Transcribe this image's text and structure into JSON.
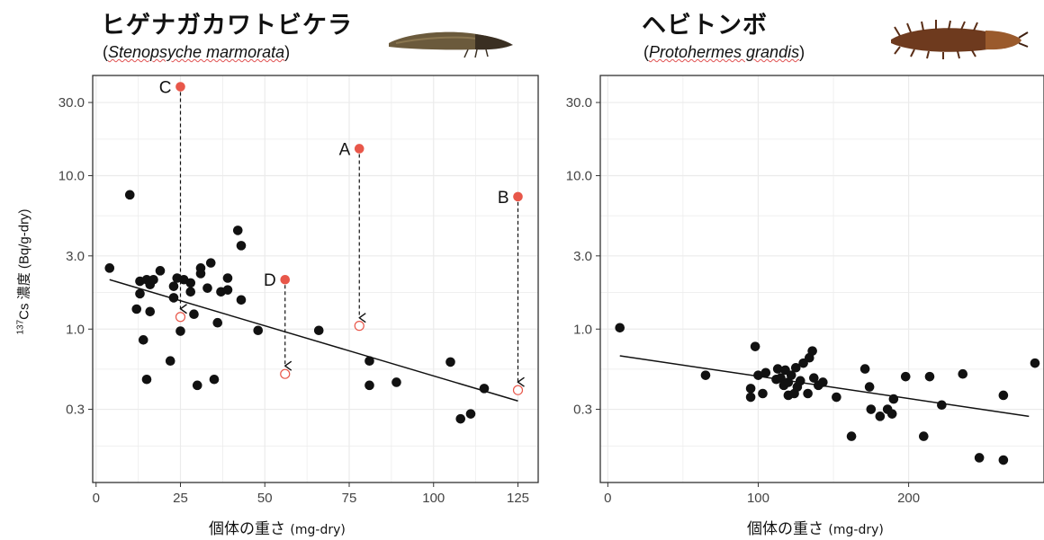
{
  "figure": {
    "y_axis_label": {
      "prefix": "137",
      "main": "Cs 濃度",
      "unit": "(Bq/g-dry)"
    },
    "colors": {
      "point": "#111111",
      "highlight": "#e8574a",
      "line": "#111111",
      "grid": "#ebebeb",
      "frame": "#333333"
    }
  },
  "panels": [
    {
      "title": "ヒゲナガカワトビケラ",
      "subtitle_open": "(",
      "subtitle_scientific": "Stenopsyche marmorata",
      "subtitle_close": ")",
      "image_icon": "caddisfly-larva-photo",
      "xlabel_main": "個体の重さ",
      "xlabel_unit": "(mg-dry)"
    },
    {
      "title": "ヘビトンボ",
      "subtitle_open": "(",
      "subtitle_scientific": "Protohermes grandis",
      "subtitle_close": ")",
      "image_icon": "dobsonfly-larva-photo",
      "xlabel_main": "個体の重さ",
      "xlabel_unit": "(mg-dry)"
    }
  ],
  "chart_data": [
    {
      "type": "scatter",
      "title": "ヒゲナガカワトビケラ (Stenopsyche marmorata)",
      "xlabel": "個体の重さ (mg-dry)",
      "ylabel": "137Cs 濃度 (Bq/g-dry)",
      "y_scale": "log",
      "xlim": [
        -1,
        131
      ],
      "ylim": [
        0.1,
        45
      ],
      "x_ticks": [
        0,
        25,
        50,
        75,
        100,
        125
      ],
      "x_tick_labels": [
        "0",
        "25",
        "50",
        "75",
        "100",
        "125"
      ],
      "y_ticks": [
        0.3,
        1.0,
        3.0,
        10.0,
        30.0
      ],
      "y_tick_labels": [
        "0.3",
        "1.0",
        "3.0",
        "10.0",
        "30.0"
      ],
      "grid": true,
      "points": [
        {
          "x": 4,
          "y": 2.5
        },
        {
          "x": 10,
          "y": 7.5
        },
        {
          "x": 12,
          "y": 1.35
        },
        {
          "x": 13,
          "y": 1.7
        },
        {
          "x": 13,
          "y": 2.05
        },
        {
          "x": 14,
          "y": 0.85
        },
        {
          "x": 15,
          "y": 2.1
        },
        {
          "x": 15,
          "y": 0.47
        },
        {
          "x": 16,
          "y": 1.95
        },
        {
          "x": 16,
          "y": 1.3
        },
        {
          "x": 17,
          "y": 2.1
        },
        {
          "x": 19,
          "y": 2.4
        },
        {
          "x": 22,
          "y": 0.62
        },
        {
          "x": 23,
          "y": 1.6
        },
        {
          "x": 23,
          "y": 1.9
        },
        {
          "x": 24,
          "y": 2.15
        },
        {
          "x": 25,
          "y": 0.97
        },
        {
          "x": 26,
          "y": 2.1
        },
        {
          "x": 28,
          "y": 2.0
        },
        {
          "x": 28,
          "y": 1.75
        },
        {
          "x": 29,
          "y": 1.25
        },
        {
          "x": 30,
          "y": 0.43
        },
        {
          "x": 31,
          "y": 2.5
        },
        {
          "x": 31,
          "y": 2.3
        },
        {
          "x": 33,
          "y": 1.85
        },
        {
          "x": 34,
          "y": 2.7
        },
        {
          "x": 35,
          "y": 0.47
        },
        {
          "x": 36,
          "y": 1.1
        },
        {
          "x": 37,
          "y": 1.75
        },
        {
          "x": 39,
          "y": 1.8
        },
        {
          "x": 39,
          "y": 2.15
        },
        {
          "x": 42,
          "y": 4.4
        },
        {
          "x": 43,
          "y": 3.5
        },
        {
          "x": 43,
          "y": 1.55
        },
        {
          "x": 48,
          "y": 0.98
        },
        {
          "x": 66,
          "y": 0.98
        },
        {
          "x": 81,
          "y": 0.62
        },
        {
          "x": 81,
          "y": 0.43
        },
        {
          "x": 89,
          "y": 0.45
        },
        {
          "x": 105,
          "y": 0.61
        },
        {
          "x": 108,
          "y": 0.26
        },
        {
          "x": 111,
          "y": 0.28
        },
        {
          "x": 115,
          "y": 0.41
        }
      ],
      "highlighted": [
        {
          "label": "C",
          "x": 25,
          "y": 38.0,
          "y_after": 1.2
        },
        {
          "label": "A",
          "x": 78,
          "y": 15.0,
          "y_after": 1.05
        },
        {
          "label": "B",
          "x": 125,
          "y": 7.3,
          "y_after": 0.4
        },
        {
          "label": "D",
          "x": 56,
          "y": 2.1,
          "y_after": 0.51
        }
      ],
      "trend_line": {
        "x": [
          4,
          125
        ],
        "y": [
          2.1,
          0.34
        ]
      }
    },
    {
      "type": "scatter",
      "title": "ヘビトンボ (Protohermes grandis)",
      "xlabel": "個体の重さ (mg-dry)",
      "ylabel": "137Cs 濃度 (Bq/g-dry)",
      "y_scale": "log",
      "xlim": [
        -5,
        290
      ],
      "ylim": [
        0.1,
        45
      ],
      "x_ticks": [
        0,
        100,
        200
      ],
      "x_tick_labels": [
        "0",
        "100",
        "200"
      ],
      "y_ticks": [
        0.3,
        1.0,
        3.0,
        10.0,
        30.0
      ],
      "y_tick_labels": [
        "0.3",
        "1.0",
        "3.0",
        "10.0",
        "30.0"
      ],
      "grid": true,
      "points": [
        {
          "x": 8,
          "y": 1.02
        },
        {
          "x": 65,
          "y": 0.5
        },
        {
          "x": 95,
          "y": 0.41
        },
        {
          "x": 95,
          "y": 0.36
        },
        {
          "x": 98,
          "y": 0.77
        },
        {
          "x": 100,
          "y": 0.5
        },
        {
          "x": 103,
          "y": 0.38
        },
        {
          "x": 105,
          "y": 0.52
        },
        {
          "x": 112,
          "y": 0.47
        },
        {
          "x": 113,
          "y": 0.55
        },
        {
          "x": 115,
          "y": 0.48
        },
        {
          "x": 117,
          "y": 0.43
        },
        {
          "x": 118,
          "y": 0.54
        },
        {
          "x": 120,
          "y": 0.37
        },
        {
          "x": 120,
          "y": 0.45
        },
        {
          "x": 122,
          "y": 0.5
        },
        {
          "x": 124,
          "y": 0.38
        },
        {
          "x": 125,
          "y": 0.56
        },
        {
          "x": 126,
          "y": 0.42
        },
        {
          "x": 128,
          "y": 0.46
        },
        {
          "x": 130,
          "y": 0.6
        },
        {
          "x": 133,
          "y": 0.38
        },
        {
          "x": 134,
          "y": 0.65
        },
        {
          "x": 136,
          "y": 0.72
        },
        {
          "x": 137,
          "y": 0.48
        },
        {
          "x": 140,
          "y": 0.43
        },
        {
          "x": 143,
          "y": 0.45
        },
        {
          "x": 152,
          "y": 0.36
        },
        {
          "x": 162,
          "y": 0.2
        },
        {
          "x": 171,
          "y": 0.55
        },
        {
          "x": 174,
          "y": 0.42
        },
        {
          "x": 175,
          "y": 0.3
        },
        {
          "x": 181,
          "y": 0.27
        },
        {
          "x": 186,
          "y": 0.3
        },
        {
          "x": 189,
          "y": 0.28
        },
        {
          "x": 190,
          "y": 0.35
        },
        {
          "x": 198,
          "y": 0.49
        },
        {
          "x": 210,
          "y": 0.2
        },
        {
          "x": 214,
          "y": 0.49
        },
        {
          "x": 222,
          "y": 0.32
        },
        {
          "x": 236,
          "y": 0.51
        },
        {
          "x": 247,
          "y": 0.145
        },
        {
          "x": 263,
          "y": 0.37
        },
        {
          "x": 263,
          "y": 0.14
        },
        {
          "x": 284,
          "y": 0.6
        }
      ],
      "trend_line": {
        "x": [
          8,
          280
        ],
        "y": [
          0.67,
          0.27
        ]
      }
    }
  ]
}
